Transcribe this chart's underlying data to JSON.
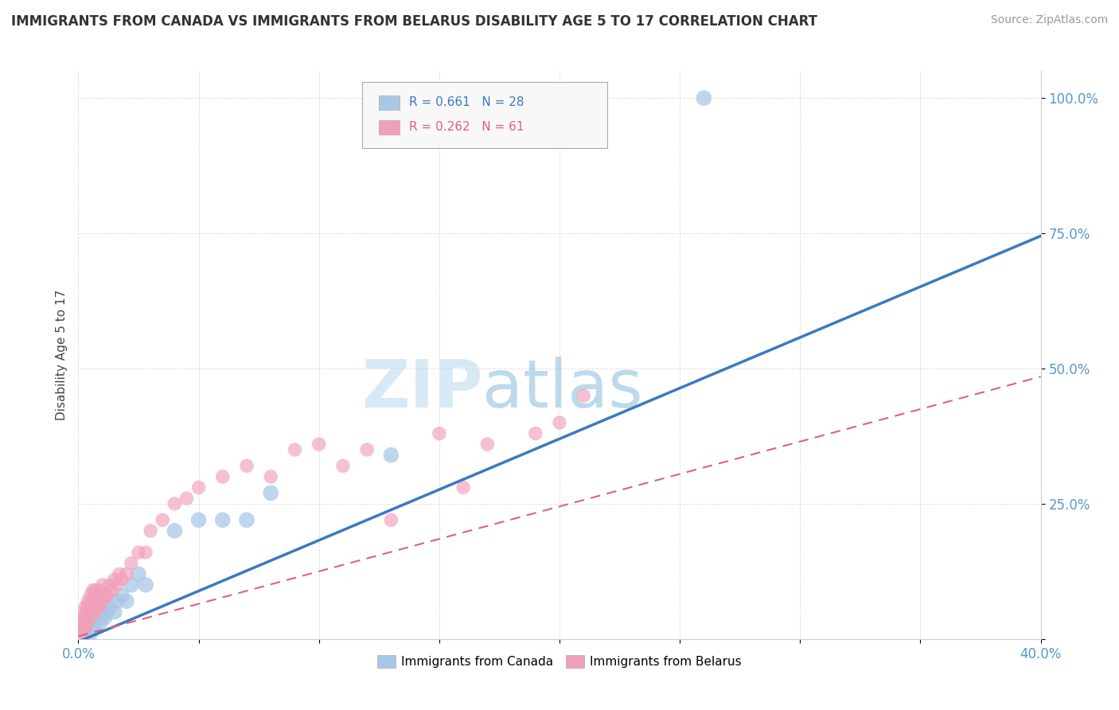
{
  "title": "IMMIGRANTS FROM CANADA VS IMMIGRANTS FROM BELARUS DISABILITY AGE 5 TO 17 CORRELATION CHART",
  "source": "Source: ZipAtlas.com",
  "ylabel": "Disability Age 5 to 17",
  "xlim": [
    0.0,
    0.4
  ],
  "ylim": [
    0.0,
    1.05
  ],
  "legend_label_blue": "Immigrants from Canada",
  "legend_label_pink": "Immigrants from Belarus",
  "blue_color": "#a8c8e8",
  "pink_color": "#f0a0b8",
  "blue_line_color": "#3a7abf",
  "pink_line_color": "#e06080",
  "watermark_zip": "ZIP",
  "watermark_atlas": "atlas",
  "background_color": "#ffffff",
  "grid_color": "#cccccc",
  "blue_r": "0.661",
  "blue_n": "28",
  "pink_r": "0.262",
  "pink_n": "61",
  "blue_scatter_x": [
    0.002,
    0.003,
    0.004,
    0.005,
    0.005,
    0.006,
    0.006,
    0.007,
    0.008,
    0.009,
    0.01,
    0.011,
    0.012,
    0.013,
    0.015,
    0.016,
    0.018,
    0.02,
    0.022,
    0.025,
    0.028,
    0.04,
    0.05,
    0.06,
    0.07,
    0.08,
    0.13,
    0.26
  ],
  "blue_scatter_y": [
    0.01,
    0.02,
    0.02,
    0.03,
    0.01,
    0.04,
    0.02,
    0.03,
    0.04,
    0.03,
    0.05,
    0.04,
    0.05,
    0.06,
    0.05,
    0.07,
    0.08,
    0.07,
    0.1,
    0.12,
    0.1,
    0.2,
    0.22,
    0.22,
    0.22,
    0.27,
    0.34,
    1.0
  ],
  "pink_scatter_x": [
    0.001,
    0.001,
    0.001,
    0.002,
    0.002,
    0.002,
    0.002,
    0.003,
    0.003,
    0.003,
    0.003,
    0.004,
    0.004,
    0.004,
    0.004,
    0.005,
    0.005,
    0.005,
    0.006,
    0.006,
    0.006,
    0.007,
    0.007,
    0.007,
    0.008,
    0.008,
    0.009,
    0.009,
    0.01,
    0.01,
    0.011,
    0.012,
    0.013,
    0.014,
    0.015,
    0.016,
    0.017,
    0.018,
    0.02,
    0.022,
    0.025,
    0.028,
    0.03,
    0.035,
    0.04,
    0.045,
    0.05,
    0.06,
    0.07,
    0.08,
    0.09,
    0.1,
    0.11,
    0.12,
    0.13,
    0.15,
    0.16,
    0.17,
    0.19,
    0.2,
    0.21
  ],
  "pink_scatter_y": [
    0.01,
    0.02,
    0.03,
    0.02,
    0.03,
    0.04,
    0.05,
    0.02,
    0.03,
    0.04,
    0.06,
    0.03,
    0.05,
    0.06,
    0.07,
    0.04,
    0.06,
    0.08,
    0.05,
    0.07,
    0.09,
    0.05,
    0.07,
    0.09,
    0.06,
    0.08,
    0.06,
    0.09,
    0.07,
    0.1,
    0.08,
    0.08,
    0.1,
    0.09,
    0.11,
    0.1,
    0.12,
    0.11,
    0.12,
    0.14,
    0.16,
    0.16,
    0.2,
    0.22,
    0.25,
    0.26,
    0.28,
    0.3,
    0.32,
    0.3,
    0.35,
    0.36,
    0.32,
    0.35,
    0.22,
    0.38,
    0.28,
    0.36,
    0.38,
    0.4,
    0.45
  ]
}
